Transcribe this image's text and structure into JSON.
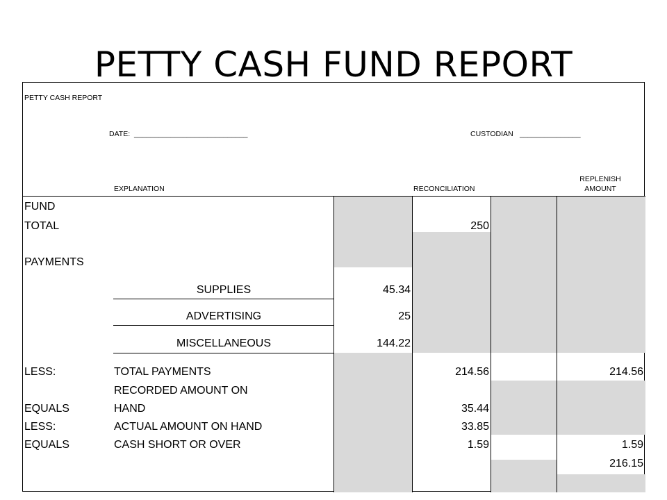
{
  "title": "PETTY CASH FUND REPORT",
  "report": {
    "heading": "PETTY CASH REPORT",
    "date_label": "DATE:",
    "date_blank": "____________________________",
    "custodian_label": "CUSTODIAN",
    "custodian_blank": "_______________",
    "col_explanation": "EXPLANATION",
    "col_reconciliation": "RECONCILIATION",
    "col_replenish_line1": "REPLENISH",
    "col_replenish_line2": "AMOUNT"
  },
  "rows": {
    "fund_label_1": "FUND",
    "fund_label_2": "TOTAL",
    "fund_total": "250",
    "payments_label": "PAYMENTS",
    "supplies_label": "SUPPLIES",
    "supplies_value": "45.34",
    "advertising_label": "ADVERTISING",
    "advertising_value": "25",
    "misc_label": "MISCELLANEOUS",
    "misc_value": "144.22",
    "less1_label": "LESS:",
    "total_payments_label": "TOTAL PAYMENTS",
    "total_payments_recon": "214.56",
    "total_payments_replenish": "214.56",
    "equals1_label": "EQUALS",
    "recorded_label_1": "RECORDED AMOUNT ON",
    "recorded_label_2": "HAND",
    "recorded_value": "35.44",
    "less2_label": "LESS:",
    "actual_label": "ACTUAL AMOUNT ON HAND",
    "actual_value": "33.85",
    "equals2_label": "EQUALS",
    "short_label": "CASH SHORT OR OVER",
    "short_recon": "1.59",
    "short_replenish": "1.59",
    "replenish_total": "216.15"
  }
}
